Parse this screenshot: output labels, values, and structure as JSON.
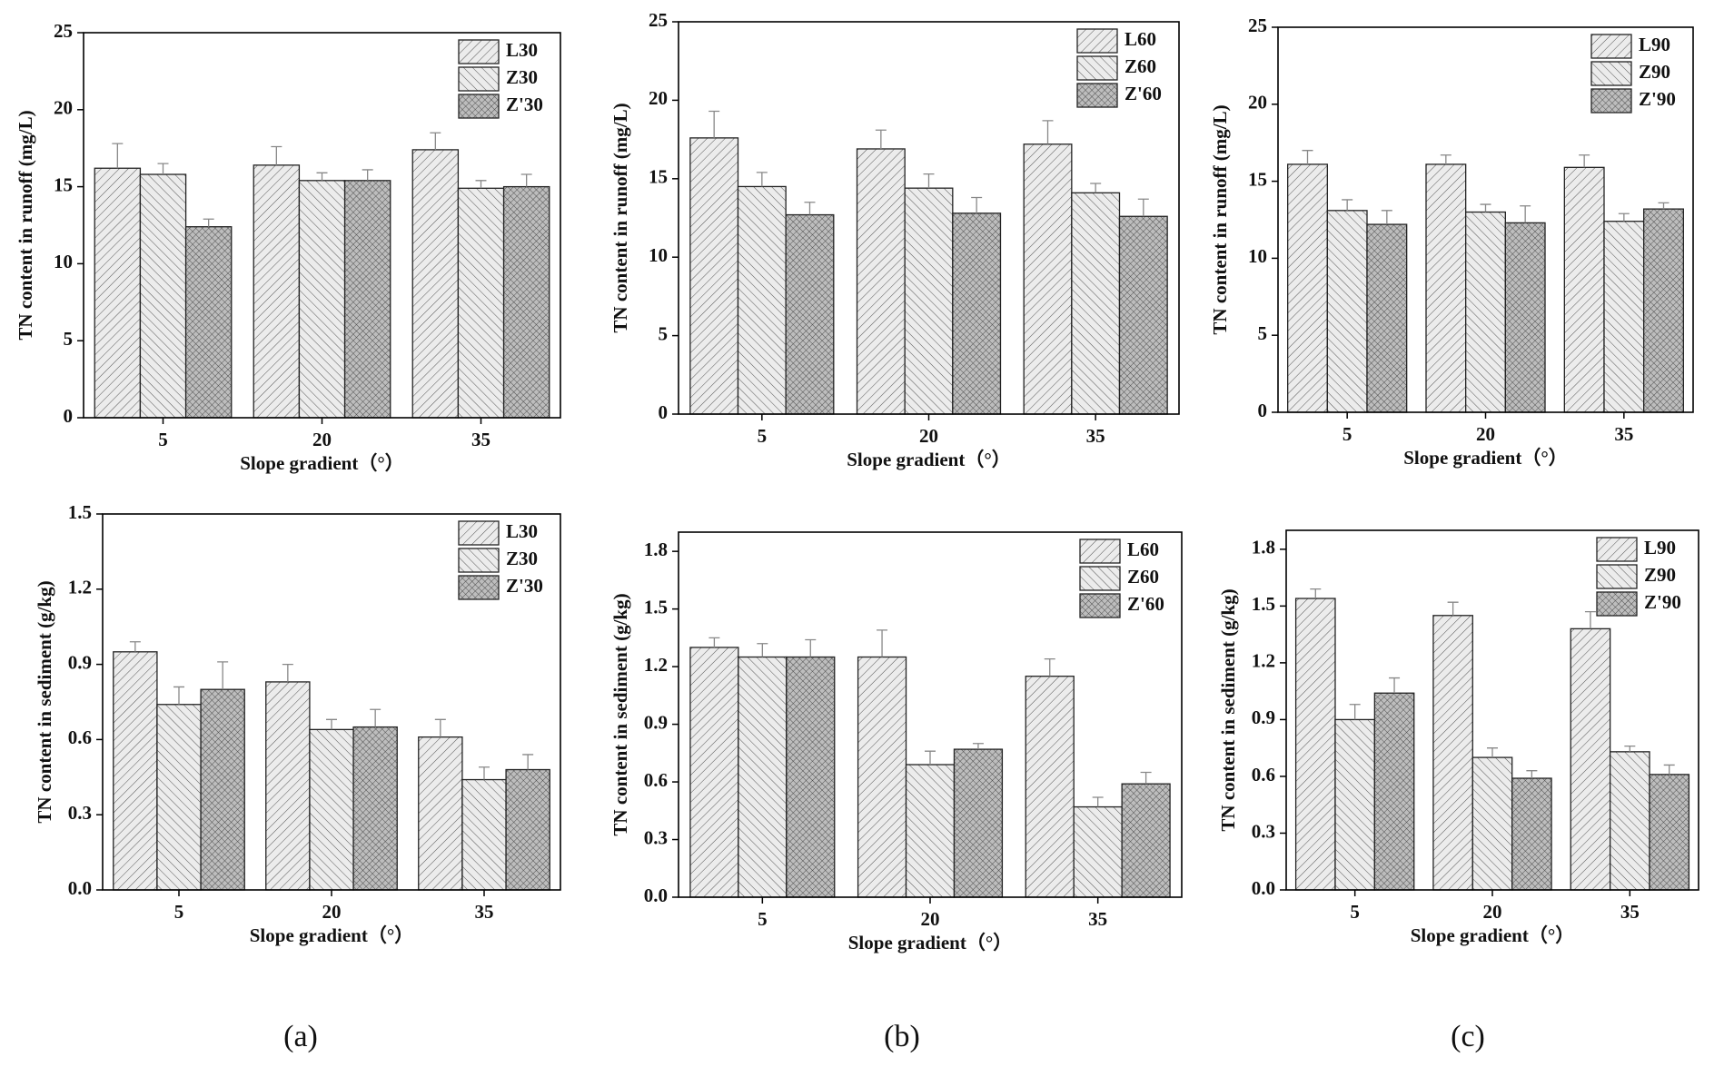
{
  "chart_data": [
    {
      "type": "bar",
      "ylabel": "TN content in runoff (mg/L)",
      "xlabel": "Slope gradient（°）",
      "categories": [
        "5",
        "20",
        "35"
      ],
      "ylim": [
        0,
        25
      ],
      "yticks": [
        0,
        5,
        10,
        15,
        20,
        25
      ],
      "legend": "upper right",
      "series": [
        {
          "name": "L30",
          "color": "#ebebeb",
          "values": [
            16.2,
            16.4,
            17.4
          ],
          "errors": [
            1.6,
            1.2,
            1.1
          ]
        },
        {
          "name": "Z30",
          "color": "#ebebeb",
          "values": [
            15.8,
            15.4,
            14.9
          ],
          "errors": [
            0.7,
            0.5,
            0.5
          ]
        },
        {
          "name": "Z'30",
          "color": "#bdbdbd",
          "values": [
            12.4,
            15.4,
            15.0
          ],
          "errors": [
            0.5,
            0.7,
            0.8
          ]
        }
      ]
    },
    {
      "type": "bar",
      "ylabel": "TN content in runoff (mg/L)",
      "xlabel": "Slope gradient（°）",
      "categories": [
        "5",
        "20",
        "35"
      ],
      "ylim": [
        0,
        25
      ],
      "yticks": [
        0,
        5,
        10,
        15,
        20,
        25
      ],
      "legend": "upper right",
      "series": [
        {
          "name": "L60",
          "color": "#ebebeb",
          "values": [
            17.6,
            16.9,
            17.2
          ],
          "errors": [
            1.7,
            1.2,
            1.5
          ]
        },
        {
          "name": "Z60",
          "color": "#ebebeb",
          "values": [
            14.5,
            14.4,
            14.1
          ],
          "errors": [
            0.9,
            0.9,
            0.6
          ]
        },
        {
          "name": "Z'60",
          "color": "#bdbdbd",
          "values": [
            12.7,
            12.8,
            12.6
          ],
          "errors": [
            0.8,
            1.0,
            1.1
          ]
        }
      ]
    },
    {
      "type": "bar",
      "ylabel": "TN content in runoff (mg/L)",
      "xlabel": "Slope gradient（°）",
      "categories": [
        "5",
        "20",
        "35"
      ],
      "ylim": [
        0,
        25
      ],
      "yticks": [
        0,
        5,
        10,
        15,
        20,
        25
      ],
      "legend": "upper right",
      "series": [
        {
          "name": "L90",
          "color": "#ebebeb",
          "values": [
            16.1,
            16.1,
            15.9
          ],
          "errors": [
            0.9,
            0.6,
            0.8
          ]
        },
        {
          "name": "Z90",
          "color": "#ebebeb",
          "values": [
            13.1,
            13.0,
            12.4
          ],
          "errors": [
            0.7,
            0.5,
            0.5
          ]
        },
        {
          "name": "Z'90",
          "color": "#bdbdbd",
          "values": [
            12.2,
            12.3,
            13.2
          ],
          "errors": [
            0.9,
            1.1,
            0.4
          ]
        }
      ]
    },
    {
      "type": "bar",
      "ylabel": "TN content in sediment (g/kg)",
      "xlabel": "Slope gradient（°）",
      "categories": [
        "5",
        "20",
        "35"
      ],
      "ylim": [
        0,
        1.5
      ],
      "yticks": [
        {
          "value": 0,
          "label": "0.0"
        },
        0.3,
        0.6,
        0.9,
        1.2,
        1.5
      ],
      "legend": "upper right",
      "series": [
        {
          "name": "L30",
          "color": "#ebebeb",
          "values": [
            0.95,
            0.83,
            0.61
          ],
          "errors": [
            0.04,
            0.07,
            0.07
          ]
        },
        {
          "name": "Z30",
          "color": "#ebebeb",
          "values": [
            0.74,
            0.64,
            0.44
          ],
          "errors": [
            0.07,
            0.04,
            0.05
          ]
        },
        {
          "name": "Z'30",
          "color": "#bdbdbd",
          "values": [
            0.8,
            0.65,
            0.48
          ],
          "errors": [
            0.11,
            0.07,
            0.06
          ]
        }
      ]
    },
    {
      "type": "bar",
      "ylabel": "TN content in sediment (g/kg)",
      "xlabel": "Slope gradient（°）",
      "categories": [
        "5",
        "20",
        "35"
      ],
      "ylim": [
        0,
        1.9
      ],
      "yticks": [
        {
          "value": 0,
          "label": "0.0"
        },
        0.3,
        0.6,
        0.9,
        1.2,
        1.5,
        1.8
      ],
      "legend": "upper right",
      "series": [
        {
          "name": "L60",
          "color": "#ebebeb",
          "values": [
            1.3,
            1.25,
            1.15
          ],
          "errors": [
            0.05,
            0.14,
            0.09
          ]
        },
        {
          "name": "Z60",
          "color": "#ebebeb",
          "values": [
            1.25,
            0.69,
            0.47
          ],
          "errors": [
            0.07,
            0.07,
            0.05
          ]
        },
        {
          "name": "Z'60",
          "color": "#bdbdbd",
          "values": [
            1.25,
            0.77,
            0.59
          ],
          "errors": [
            0.09,
            0.03,
            0.06
          ]
        }
      ]
    },
    {
      "type": "bar",
      "ylabel": "TN content in sediment (g/kg)",
      "xlabel": "Slope gradient（°）",
      "categories": [
        "5",
        "20",
        "35"
      ],
      "ylim": [
        0,
        1.9
      ],
      "yticks": [
        {
          "value": 0,
          "label": "0.0"
        },
        0.3,
        0.6,
        0.9,
        1.2,
        1.5,
        1.8
      ],
      "legend": "upper right",
      "series": [
        {
          "name": "L90",
          "color": "#ebebeb",
          "values": [
            1.54,
            1.45,
            1.38
          ],
          "errors": [
            0.05,
            0.07,
            0.09
          ]
        },
        {
          "name": "Z90",
          "color": "#ebebeb",
          "values": [
            0.9,
            0.7,
            0.73
          ],
          "errors": [
            0.08,
            0.05,
            0.03
          ]
        },
        {
          "name": "Z'90",
          "color": "#bdbdbd",
          "values": [
            1.04,
            0.59,
            0.61
          ],
          "errors": [
            0.08,
            0.04,
            0.05
          ]
        }
      ]
    }
  ],
  "panel_labels": [
    "(a)",
    "(b)",
    "(c)"
  ]
}
